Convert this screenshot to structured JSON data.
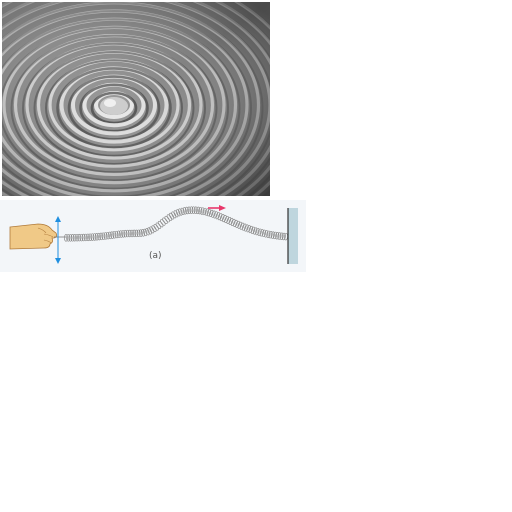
{
  "ripple_photo": {
    "icon": "water-ripple-photo",
    "colors": {
      "light": "#e6e6e6",
      "dark": "#3e3e3e",
      "center": "#d8d8d8"
    }
  },
  "spring_diagram": {
    "caption": "(a)",
    "colors": {
      "panel": "#f3f6f9",
      "spring": "#8a8a8a",
      "motion_arrow": "#1f8fe0",
      "propagation_arrow": "#e8386b",
      "hand": "#f0c987",
      "wall": "#bfd6de"
    },
    "icons": [
      "hand-icon",
      "double-arrow-icon",
      "spring-icon",
      "propagation-arrow-icon",
      "wall-icon"
    ]
  }
}
